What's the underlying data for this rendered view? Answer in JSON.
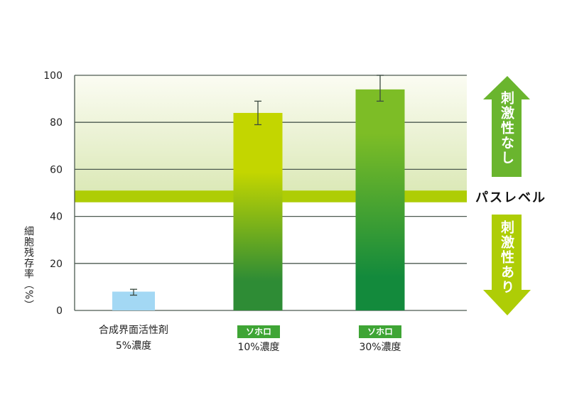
{
  "chart_data": {
    "type": "bar",
    "categories": [
      "合成界面活性剤 5%濃度",
      "ソホロ 10%濃度",
      "ソホロ 30%濃度"
    ],
    "values": [
      8,
      84,
      94
    ],
    "error_low": [
      6.5,
      79,
      89
    ],
    "error_high": [
      9,
      89,
      100
    ],
    "bar_colors": [
      "#a3d8f4",
      "#c3d600",
      "#7dbd26"
    ],
    "bar_bottom_colors": [
      "#a3d8f4",
      "#2e8c35",
      "#138a3c"
    ],
    "ylabel": "細胞残存率（%）",
    "ylim": [
      0,
      100
    ],
    "yticks": [
      0,
      20,
      40,
      60,
      80,
      100
    ],
    "grid": true,
    "pass_band": [
      46,
      51
    ],
    "pass_band_color": "#aecd06",
    "pass_label": "パスレベル",
    "annotations": {
      "above": "刺激性なし",
      "below": "刺激性あり"
    },
    "arrow_colors": {
      "above": "#6ab52e",
      "below": "#aecd06"
    }
  },
  "labels": [
    {
      "badge": "",
      "line1": "合成界面活性剤",
      "line2": "5%濃度"
    },
    {
      "badge": "ソホロ",
      "line1": "",
      "line2": "10%濃度"
    },
    {
      "badge": "ソホロ",
      "line1": "",
      "line2": "30%濃度"
    }
  ]
}
